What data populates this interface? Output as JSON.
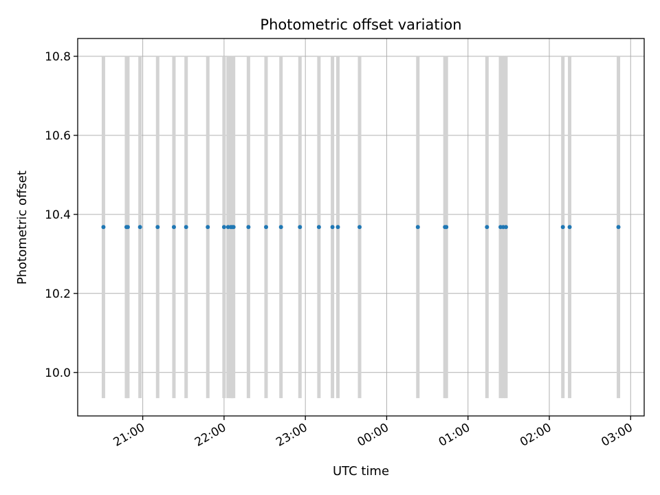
{
  "chart_data": {
    "type": "scatter",
    "title": "Photometric offset variation",
    "xlabel": "UTC time",
    "ylabel": "Photometric offset",
    "grid": true,
    "xlim": [
      "20:12",
      "03:10"
    ],
    "ylim": [
      9.89,
      10.845
    ],
    "x_ticks": [
      "21:00",
      "22:00",
      "23:00",
      "00:00",
      "01:00",
      "02:00",
      "03:00"
    ],
    "y_ticks": [
      10.0,
      10.2,
      10.4,
      10.6,
      10.8
    ],
    "y_tick_labels": [
      "10.0",
      "10.2",
      "10.4",
      "10.6",
      "10.8"
    ],
    "marker_color": "#1f77b4",
    "exposure_band_color": "#d3d3d3",
    "exposure_band_range": [
      9.935,
      10.8
    ],
    "series": [
      {
        "x": [
          "20:31",
          "20:48",
          "20:49",
          "20:58",
          "21:11",
          "21:23",
          "21:32",
          "21:48",
          "22:00",
          "22:03",
          "22:05",
          "22:06",
          "22:07",
          "22:18",
          "22:31",
          "22:42",
          "22:56",
          "23:10",
          "23:20",
          "23:24",
          "23:40",
          "00:23",
          "00:43",
          "00:44",
          "01:14",
          "01:24",
          "01:26",
          "01:28",
          "02:10",
          "02:15",
          "02:51"
        ],
        "y": [
          10.368,
          10.368,
          10.368,
          10.368,
          10.368,
          10.368,
          10.368,
          10.368,
          10.368,
          10.368,
          10.368,
          10.368,
          10.368,
          10.368,
          10.368,
          10.368,
          10.368,
          10.368,
          10.368,
          10.368,
          10.368,
          10.368,
          10.368,
          10.368,
          10.368,
          10.368,
          10.368,
          10.368,
          10.368,
          10.368,
          10.368
        ]
      }
    ]
  }
}
